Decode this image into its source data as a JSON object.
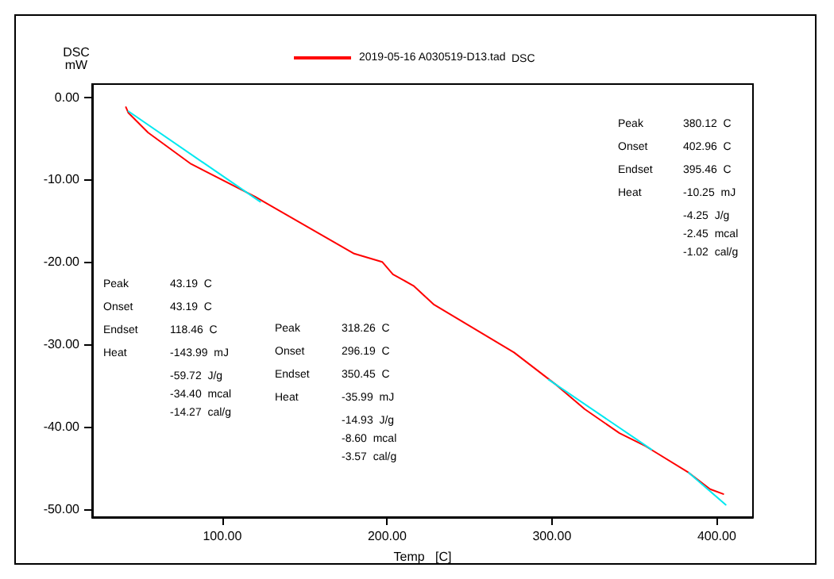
{
  "chart_data": {
    "type": "line",
    "xlabel": "Temp   [C]",
    "ylabel": "DSC\nmW",
    "xlim": [
      21,
      422
    ],
    "ylim": [
      -51,
      1.6
    ],
    "xticks": [
      {
        "value": 100,
        "label": "100.00"
      },
      {
        "value": 200,
        "label": "200.00"
      },
      {
        "value": 300,
        "label": "300.00"
      },
      {
        "value": 400,
        "label": "400.00"
      }
    ],
    "yticks": [
      {
        "value": 0,
        "label": "0.00"
      },
      {
        "value": -10,
        "label": "-10.00"
      },
      {
        "value": -20,
        "label": "-20.00"
      },
      {
        "value": -30,
        "label": "-30.00"
      },
      {
        "value": -40,
        "label": "-40.00"
      },
      {
        "value": -50,
        "label": "-50.00"
      }
    ],
    "series": [
      {
        "name": "2019-05-16 A030519-D13.tad",
        "color": "#ff0000",
        "x": [
          41.5,
          43,
          55,
          81,
          120,
          180,
          197,
          203.5,
          216,
          228.5,
          277,
          303,
          320,
          341,
          357,
          383,
          396,
          404
        ],
        "values": [
          -1.2,
          -1.9,
          -4.3,
          -8.1,
          -12.1,
          -19,
          -20,
          -21.5,
          -22.9,
          -25.2,
          -31,
          -35,
          -37.9,
          -40.8,
          -42.4,
          -45.6,
          -47.6,
          -48.2
        ]
      },
      {
        "color": "#00e8f0",
        "x": [
          43,
          123
        ],
        "values": [
          -1.7,
          -12.7
        ]
      },
      {
        "color": "#00e8f0",
        "x": [
          298,
          360.5
        ],
        "values": [
          -34.3,
          -42.8
        ]
      },
      {
        "color": "#00e8f0",
        "x": [
          383,
          405.5
        ],
        "values": [
          -45.6,
          -49.5
        ]
      }
    ],
    "annotations": [
      "DSC",
      "Peak\t380.12  C\nOnset\t402.96  C\nEndset\t395.46  C\nHeat\t-10.25  mJ\n\t-4.25  J/g\n\t-2.45  mcal\n\t-1.02  cal/g",
      "Peak\t43.19  C\nOnset\t43.19  C\nEndset\t118.46  C\nHeat\t-143.99  mJ\n\t-59.72  J/g\n\t-34.40  mcal\n\t-14.27  cal/g",
      "Peak\t318.26  C\nOnset\t296.19  C\nEndset\t350.45  C\nHeat\t-35.99  mJ\n\t-14.93  J/g\n\t-8.60  mcal\n\t-3.57  cal/g"
    ],
    "legend": "top",
    "marker": "none",
    "line_style": "solid",
    "grid": false
  }
}
